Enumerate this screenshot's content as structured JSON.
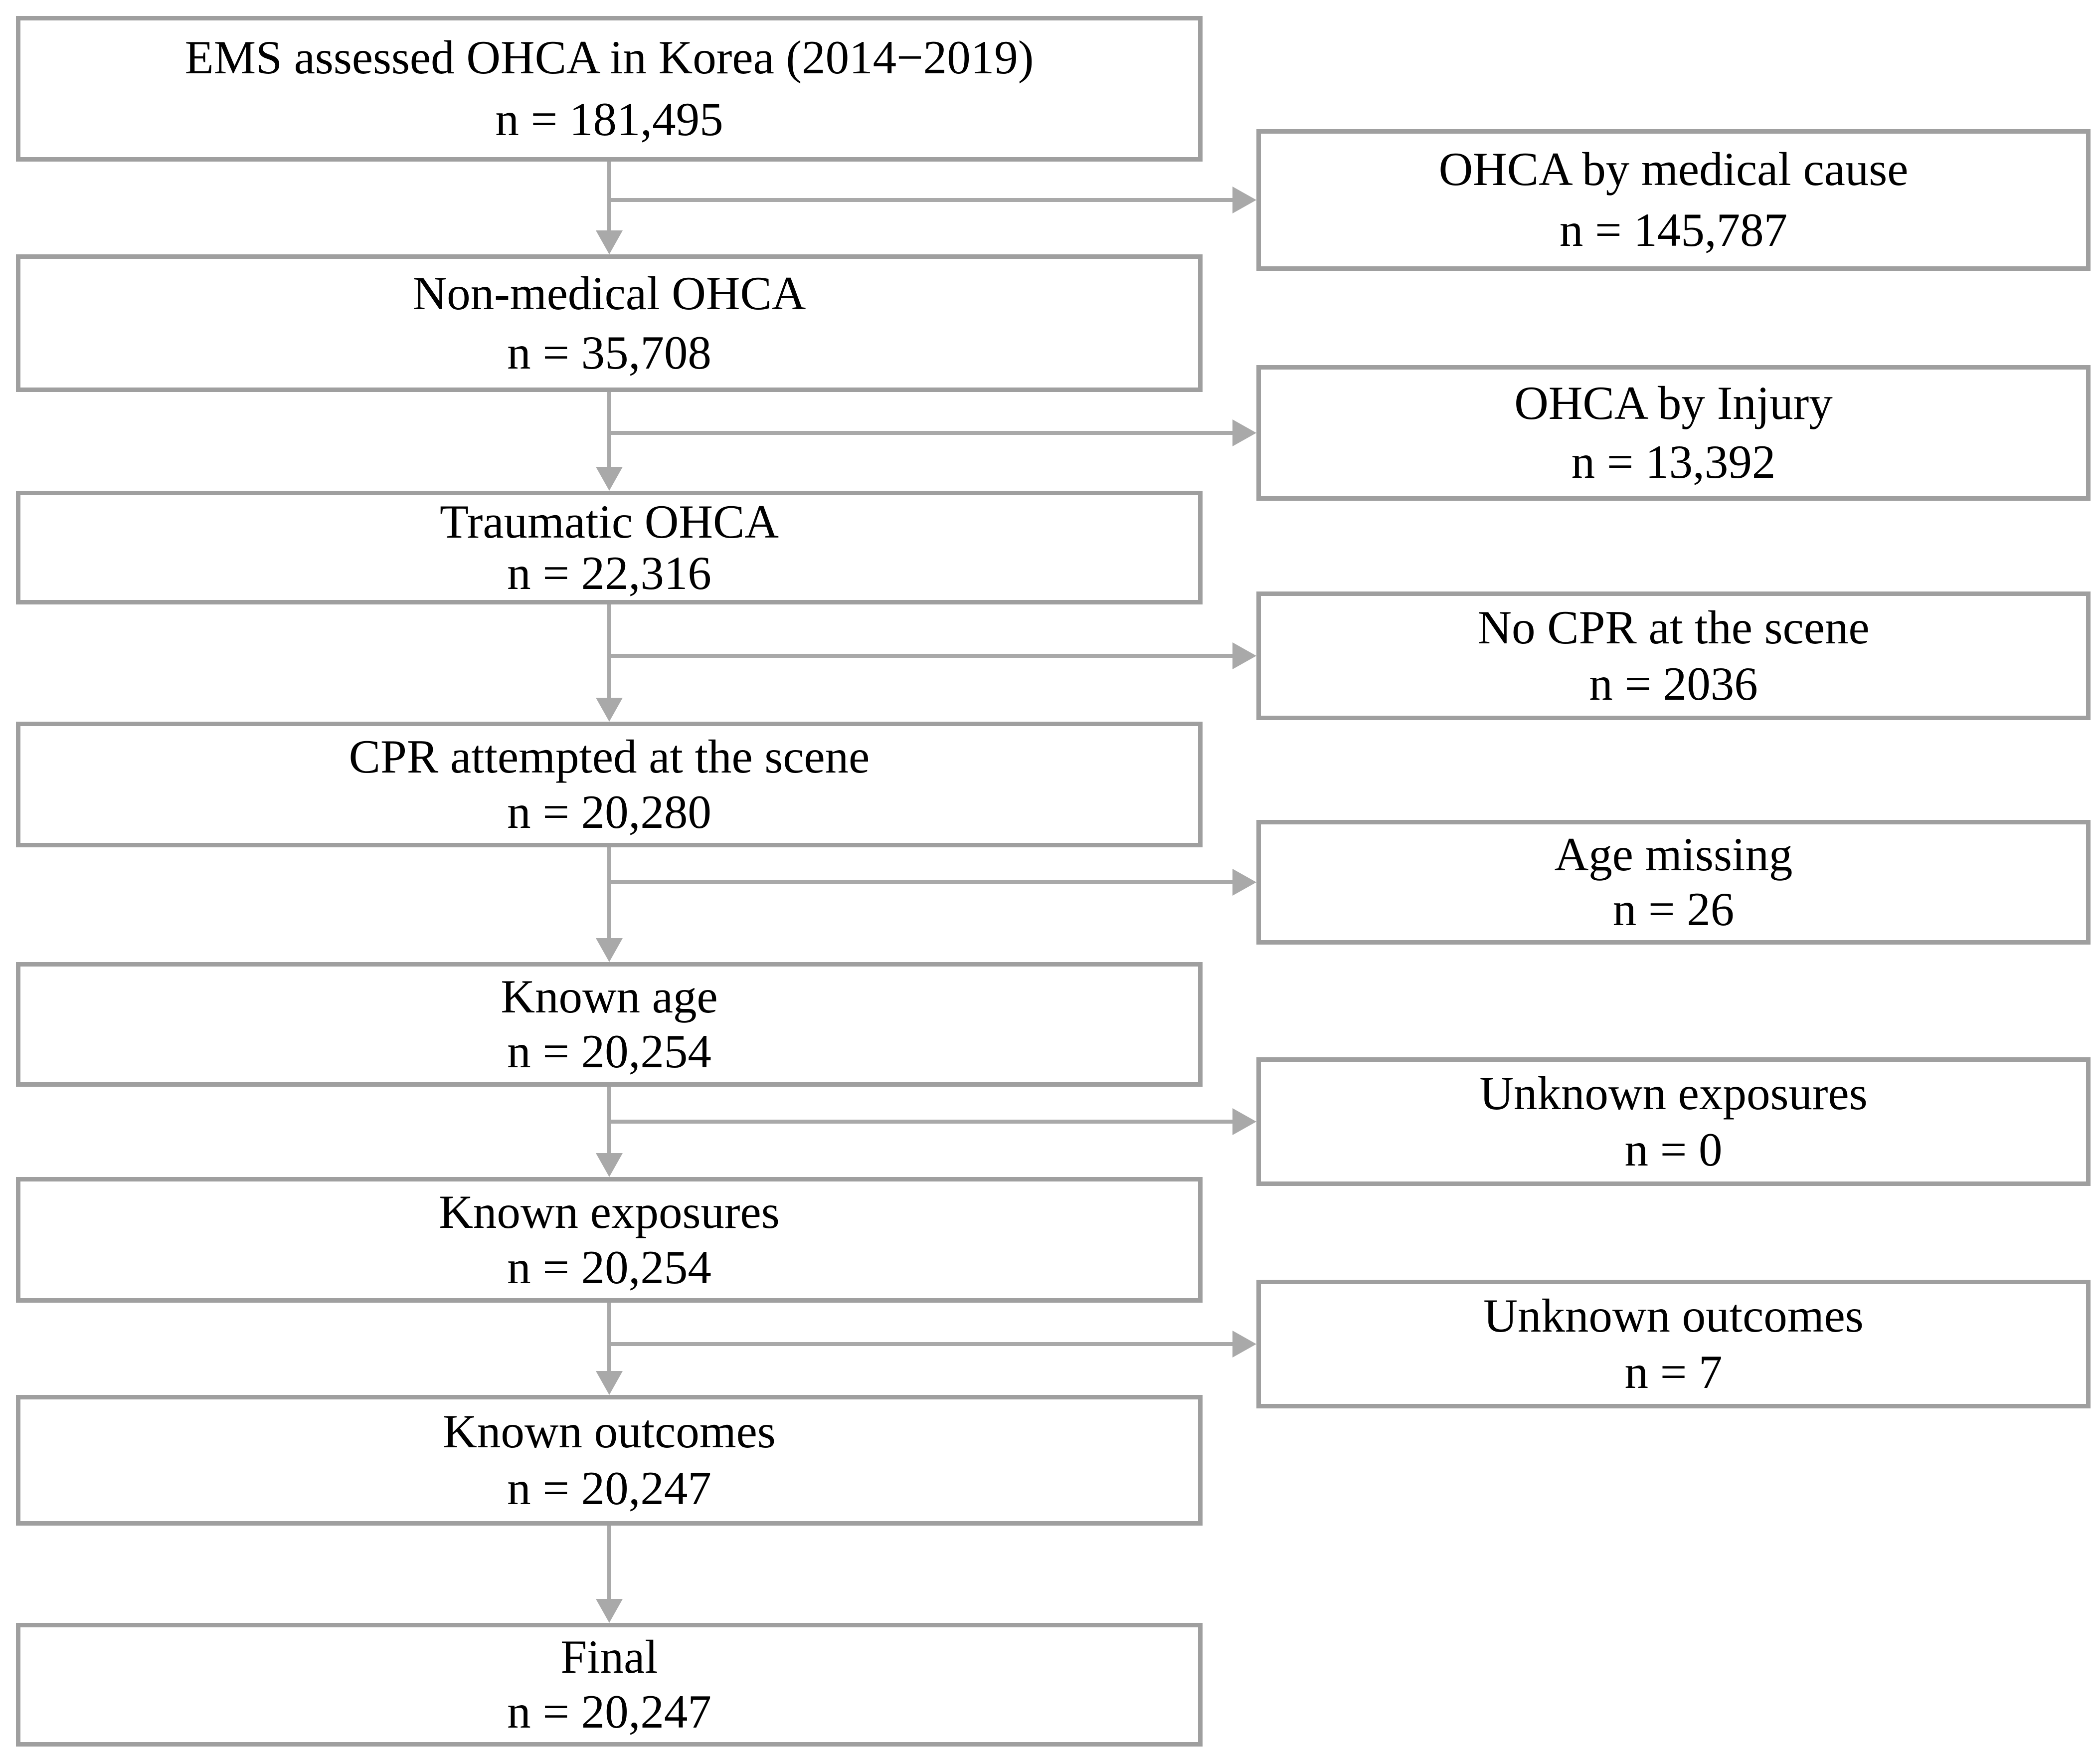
{
  "colors": {
    "background": "#ffffff",
    "text": "#000000",
    "box_border": "#9f9f9f",
    "connector": "#a9a9a9"
  },
  "main_boxes": [
    {
      "label": "EMS assessed OHCA in Korea (2014−2019)",
      "count": "n = 181,495"
    },
    {
      "label": "Non-medical OHCA",
      "count": "n = 35,708"
    },
    {
      "label": "Traumatic OHCA",
      "count": "n = 22,316"
    },
    {
      "label": "CPR attempted at the scene",
      "count": "n = 20,280"
    },
    {
      "label": "Known age",
      "count": "n = 20,254"
    },
    {
      "label": "Known exposures",
      "count": "n = 20,254"
    },
    {
      "label": "Known outcomes",
      "count": "n = 20,247"
    },
    {
      "label": "Final",
      "count": "n = 20,247"
    }
  ],
  "exclusion_boxes": [
    {
      "label": "OHCA by medical cause",
      "count": "n = 145,787"
    },
    {
      "label": "OHCA by Injury",
      "count": "n = 13,392"
    },
    {
      "label": "No CPR at the scene",
      "count": "n = 2036"
    },
    {
      "label": "Age missing",
      "count": "n = 26"
    },
    {
      "label": "Unknown exposures",
      "count": "n = 0"
    },
    {
      "label": "Unknown outcomes",
      "count": "n = 7"
    }
  ]
}
